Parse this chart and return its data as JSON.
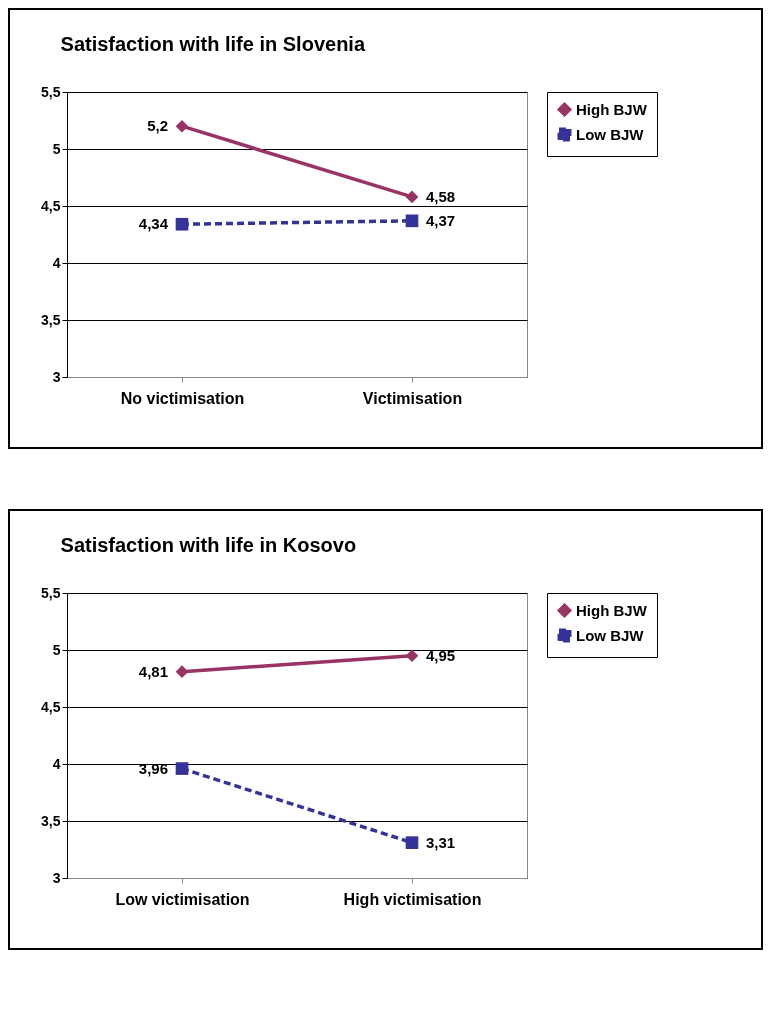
{
  "chart_data": [
    {
      "type": "line",
      "title": "Satisfaction with life in Slovenia",
      "categories": [
        "No victimisation",
        "Victimisation"
      ],
      "series": [
        {
          "name": "High BJW",
          "color": "#993366",
          "values": [
            5.2,
            4.58
          ],
          "value_labels": [
            "5,2",
            "4,58"
          ],
          "marker": "diamond",
          "line_style": "solid"
        },
        {
          "name": "Low BJW",
          "color": "#333399",
          "values": [
            4.34,
            4.37
          ],
          "value_labels": [
            "4,34",
            "4,37"
          ],
          "marker": "square",
          "line_style": "dashed"
        }
      ],
      "ylim": [
        3,
        5.5
      ],
      "yticks": [
        3,
        {
          "value": 3.5,
          "label": "3,5"
        },
        4,
        {
          "value": 4.5,
          "label": "4,5"
        },
        5,
        {
          "value": 5.5,
          "label": "5,5"
        }
      ],
      "grid": "y",
      "legend": "right"
    },
    {
      "type": "line",
      "title": "Satisfaction with life in Kosovo",
      "categories": [
        "Low victimisation",
        "High victimisation"
      ],
      "series": [
        {
          "name": "High BJW",
          "color": "#993366",
          "values": [
            4.81,
            4.95
          ],
          "value_labels": [
            "4,81",
            "4,95"
          ],
          "marker": "diamond",
          "line_style": "solid"
        },
        {
          "name": "Low BJW",
          "color": "#333399",
          "values": [
            3.96,
            3.31
          ],
          "value_labels": [
            "3,96",
            "3,31"
          ],
          "marker": "square",
          "line_style": "dashed"
        }
      ],
      "ylim": [
        3,
        5.5
      ],
      "yticks": [
        3,
        {
          "value": 3.5,
          "label": "3,5"
        },
        4,
        {
          "value": 4.5,
          "label": "4,5"
        },
        5,
        {
          "value": 5.5,
          "label": "5,5"
        }
      ],
      "grid": "y",
      "legend": "right"
    }
  ]
}
